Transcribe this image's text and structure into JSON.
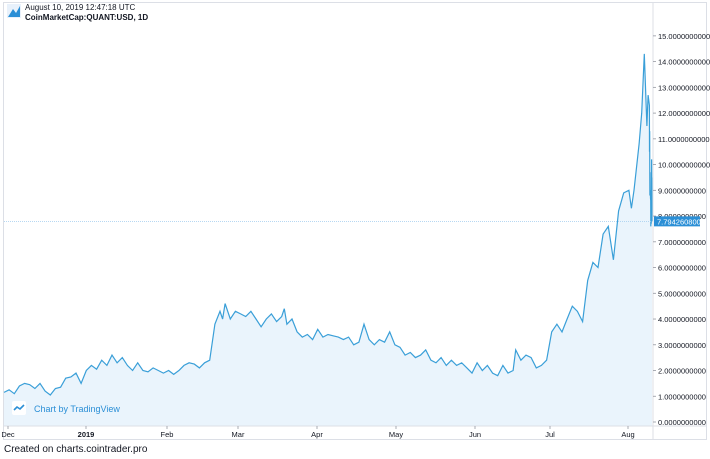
{
  "header": {
    "timestamp": "August 10, 2019 12:47:18 UTC",
    "symbol": "CoinMarketCap:QUANT:USD, 1D"
  },
  "footer": {
    "created": "Created on charts.cointrader.pro"
  },
  "watermark": {
    "label": "Chart by TradingView",
    "icon": "tradingview-logo-icon"
  },
  "colors": {
    "line": "#3a9fd8",
    "fill": "#eaf4fc",
    "price_tag": "#2b8fd6",
    "axis_text": "#131722",
    "grid": "#e1e3e8"
  },
  "chart_data": {
    "type": "area",
    "title": "",
    "xlabel": "",
    "ylabel": "",
    "x_tick_labels": [
      "Dec",
      "2019",
      "Feb",
      "Mar",
      "Apr",
      "May",
      "Jun",
      "Jul",
      "Aug"
    ],
    "y_tick_labels": [
      "0.0000000000",
      "1.0000000000",
      "2.0000000000",
      "3.0000000000",
      "4.0000000000",
      "5.0000000000",
      "6.0000000000",
      "7.0000000000",
      "8.0000000000",
      "9.0000000000",
      "10.0000000000",
      "11.0000000000",
      "12.0000000000",
      "13.0000000000",
      "14.0000000000",
      "15.0000000000"
    ],
    "ylim": [
      0,
      15.5
    ],
    "xlim": [
      "2018-12-01",
      "2019-08-10"
    ],
    "grid": false,
    "current_price": 7.7942608,
    "current_price_label": "7.7942608000",
    "series": [
      {
        "points": [
          [
            "2018-12-01",
            1.15
          ],
          [
            "2018-12-03",
            1.25
          ],
          [
            "2018-12-05",
            1.1
          ],
          [
            "2018-12-07",
            1.4
          ],
          [
            "2018-12-09",
            1.5
          ],
          [
            "2018-12-11",
            1.45
          ],
          [
            "2018-12-13",
            1.3
          ],
          [
            "2018-12-15",
            1.5
          ],
          [
            "2018-12-17",
            1.2
          ],
          [
            "2018-12-19",
            1.05
          ],
          [
            "2018-12-21",
            1.3
          ],
          [
            "2018-12-23",
            1.35
          ],
          [
            "2018-12-25",
            1.7
          ],
          [
            "2018-12-27",
            1.75
          ],
          [
            "2018-12-29",
            1.9
          ],
          [
            "2018-12-31",
            1.5
          ],
          [
            "2019-01-02",
            2.0
          ],
          [
            "2019-01-04",
            2.2
          ],
          [
            "2019-01-06",
            2.05
          ],
          [
            "2019-01-08",
            2.4
          ],
          [
            "2019-01-10",
            2.2
          ],
          [
            "2019-01-12",
            2.6
          ],
          [
            "2019-01-14",
            2.3
          ],
          [
            "2019-01-16",
            2.5
          ],
          [
            "2019-01-18",
            2.2
          ],
          [
            "2019-01-20",
            2.0
          ],
          [
            "2019-01-22",
            2.3
          ],
          [
            "2019-01-24",
            2.0
          ],
          [
            "2019-01-26",
            1.95
          ],
          [
            "2019-01-28",
            2.1
          ],
          [
            "2019-01-30",
            2.0
          ],
          [
            "2019-02-01",
            1.9
          ],
          [
            "2019-02-03",
            2.0
          ],
          [
            "2019-02-05",
            1.85
          ],
          [
            "2019-02-07",
            2.0
          ],
          [
            "2019-02-09",
            2.2
          ],
          [
            "2019-02-11",
            2.3
          ],
          [
            "2019-02-13",
            2.25
          ],
          [
            "2019-02-15",
            2.1
          ],
          [
            "2019-02-17",
            2.3
          ],
          [
            "2019-02-19",
            2.4
          ],
          [
            "2019-02-21",
            3.8
          ],
          [
            "2019-02-23",
            4.3
          ],
          [
            "2019-02-24",
            4.0
          ],
          [
            "2019-02-25",
            4.6
          ],
          [
            "2019-02-27",
            4.0
          ],
          [
            "2019-03-01",
            4.3
          ],
          [
            "2019-03-03",
            4.2
          ],
          [
            "2019-03-05",
            4.1
          ],
          [
            "2019-03-07",
            4.3
          ],
          [
            "2019-03-09",
            4.0
          ],
          [
            "2019-03-11",
            3.7
          ],
          [
            "2019-03-13",
            4.0
          ],
          [
            "2019-03-15",
            4.2
          ],
          [
            "2019-03-17",
            3.9
          ],
          [
            "2019-03-19",
            4.1
          ],
          [
            "2019-03-20",
            4.4
          ],
          [
            "2019-03-21",
            3.8
          ],
          [
            "2019-03-23",
            4.0
          ],
          [
            "2019-03-25",
            3.5
          ],
          [
            "2019-03-27",
            3.3
          ],
          [
            "2019-03-29",
            3.4
          ],
          [
            "2019-03-31",
            3.2
          ],
          [
            "2019-04-02",
            3.6
          ],
          [
            "2019-04-04",
            3.3
          ],
          [
            "2019-04-06",
            3.4
          ],
          [
            "2019-04-08",
            3.35
          ],
          [
            "2019-04-10",
            3.3
          ],
          [
            "2019-04-12",
            3.2
          ],
          [
            "2019-04-14",
            3.3
          ],
          [
            "2019-04-16",
            3.0
          ],
          [
            "2019-04-18",
            3.1
          ],
          [
            "2019-04-20",
            3.8
          ],
          [
            "2019-04-22",
            3.2
          ],
          [
            "2019-04-24",
            3.0
          ],
          [
            "2019-04-26",
            3.2
          ],
          [
            "2019-04-28",
            3.1
          ],
          [
            "2019-04-30",
            3.5
          ],
          [
            "2019-05-02",
            3.0
          ],
          [
            "2019-05-04",
            2.9
          ],
          [
            "2019-05-06",
            2.6
          ],
          [
            "2019-05-08",
            2.7
          ],
          [
            "2019-05-10",
            2.5
          ],
          [
            "2019-05-12",
            2.6
          ],
          [
            "2019-05-14",
            2.8
          ],
          [
            "2019-05-16",
            2.4
          ],
          [
            "2019-05-18",
            2.3
          ],
          [
            "2019-05-20",
            2.5
          ],
          [
            "2019-05-22",
            2.2
          ],
          [
            "2019-05-24",
            2.4
          ],
          [
            "2019-05-26",
            2.2
          ],
          [
            "2019-05-28",
            2.3
          ],
          [
            "2019-05-30",
            2.1
          ],
          [
            "2019-06-01",
            1.9
          ],
          [
            "2019-06-03",
            2.3
          ],
          [
            "2019-06-05",
            2.0
          ],
          [
            "2019-06-07",
            2.2
          ],
          [
            "2019-06-09",
            1.9
          ],
          [
            "2019-06-11",
            1.8
          ],
          [
            "2019-06-13",
            2.2
          ],
          [
            "2019-06-15",
            1.9
          ],
          [
            "2019-06-17",
            2.0
          ],
          [
            "2019-06-18",
            2.8
          ],
          [
            "2019-06-20",
            2.4
          ],
          [
            "2019-06-22",
            2.6
          ],
          [
            "2019-06-24",
            2.5
          ],
          [
            "2019-06-26",
            2.1
          ],
          [
            "2019-06-28",
            2.2
          ],
          [
            "2019-06-30",
            2.4
          ],
          [
            "2019-07-02",
            3.5
          ],
          [
            "2019-07-04",
            3.8
          ],
          [
            "2019-07-06",
            3.5
          ],
          [
            "2019-07-08",
            4.0
          ],
          [
            "2019-07-10",
            4.5
          ],
          [
            "2019-07-12",
            4.3
          ],
          [
            "2019-07-14",
            3.9
          ],
          [
            "2019-07-16",
            5.5
          ],
          [
            "2019-07-18",
            6.2
          ],
          [
            "2019-07-20",
            6.0
          ],
          [
            "2019-07-22",
            7.3
          ],
          [
            "2019-07-24",
            7.6
          ],
          [
            "2019-07-26",
            6.3
          ],
          [
            "2019-07-28",
            8.2
          ],
          [
            "2019-07-30",
            8.9
          ],
          [
            "2019-08-01",
            9.0
          ],
          [
            "2019-08-02",
            8.3
          ],
          [
            "2019-08-03",
            9.0
          ],
          [
            "2019-08-05",
            10.8
          ],
          [
            "2019-08-06",
            12.0
          ],
          [
            "2019-08-07",
            14.3
          ],
          [
            "2019-08-08",
            11.5
          ],
          [
            "2019-08-09",
            12.7
          ],
          [
            "2019-08-09",
            12.3
          ],
          [
            "2019-08-10",
            10.5
          ],
          [
            "2019-08-10",
            11.3
          ],
          [
            "2019-08-10",
            9.5
          ],
          [
            "2019-08-10",
            8.8
          ],
          [
            "2019-08-10",
            9.0
          ],
          [
            "2019-08-10",
            9.7
          ],
          [
            "2019-08-10",
            8.8
          ],
          [
            "2019-08-10",
            8.9
          ],
          [
            "2019-08-10",
            9.0
          ],
          [
            "2019-08-10",
            8.7
          ],
          [
            "2019-08-10",
            8.6
          ],
          [
            "2019-08-10",
            7.6
          ],
          [
            "2019-08-10",
            8.1
          ],
          [
            "2019-08-10",
            7.9
          ],
          [
            "2019-08-10",
            8.3
          ],
          [
            "2019-08-10",
            7.7
          ],
          [
            "2019-08-10",
            8.0
          ],
          [
            "2019-08-10",
            8.2
          ],
          [
            "2019-08-10",
            10.2
          ],
          [
            "2019-08-10",
            9.4
          ],
          [
            "2019-08-10",
            9.5
          ],
          [
            "2019-08-10",
            8.5
          ],
          [
            "2019-08-10",
            7.8
          ]
        ]
      }
    ]
  }
}
